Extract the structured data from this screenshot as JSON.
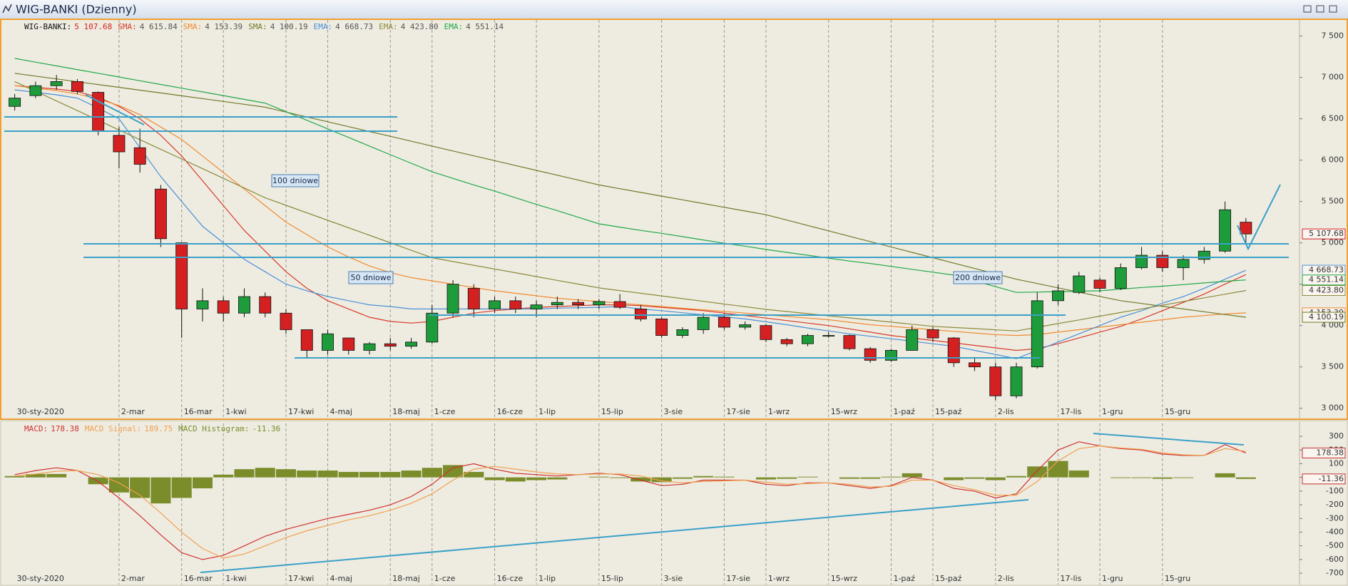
{
  "chart_data": [
    {
      "type": "candlestick",
      "title": "WIG-BANKI (Dzienny)",
      "name": "WIG-BANKI:",
      "last_label": "5 107.68",
      "up_color": "#1e9b3a",
      "down_color": "#d42020",
      "grid": true,
      "categories": [
        "30-sty-2020",
        null,
        null,
        null,
        null,
        "2-mar",
        null,
        null,
        "16-mar",
        null,
        "1-kwi",
        null,
        null,
        "17-kwi",
        null,
        "4-maj",
        null,
        null,
        "18-maj",
        null,
        "1-cze",
        null,
        null,
        "16-cze",
        null,
        "1-lip",
        null,
        null,
        "15-lip",
        null,
        null,
        "3-sie",
        null,
        null,
        "17-sie",
        null,
        "1-wrz",
        null,
        null,
        "15-wrz",
        null,
        null,
        "1-paź",
        null,
        "15-paź",
        null,
        null,
        "2-lis",
        null,
        null,
        "17-lis",
        null,
        "1-gru",
        null,
        null,
        "15-gru",
        null,
        null,
        null,
        null
      ],
      "open": [
        6650,
        6780,
        6900,
        6950,
        6820,
        6300,
        6150,
        5650,
        5000,
        4200,
        4300,
        4150,
        4350,
        4150,
        3950,
        3700,
        3850,
        3700,
        3780,
        3750,
        3800,
        4150,
        4450,
        4200,
        4300,
        4200,
        4250,
        4280,
        4250,
        4290,
        4200,
        4080,
        3880,
        3950,
        4100,
        3980,
        4000,
        3830,
        3780,
        3880,
        3880,
        3720,
        3580,
        3700,
        3950,
        3850,
        3550,
        3500,
        3150,
        3500,
        4300,
        4400,
        4550,
        4450,
        4700,
        4850,
        4700,
        4800,
        4900,
        5250
      ],
      "high": [
        6800,
        6950,
        7030,
        6980,
        6830,
        6400,
        6380,
        5700,
        5000,
        4450,
        4350,
        4450,
        4400,
        4200,
        3950,
        3950,
        3850,
        3800,
        3850,
        3850,
        4250,
        4550,
        4500,
        4350,
        4350,
        4300,
        4350,
        4320,
        4320,
        4380,
        4250,
        4100,
        3980,
        4150,
        4150,
        4050,
        4020,
        3850,
        3900,
        3920,
        3890,
        3740,
        3720,
        4000,
        3980,
        3860,
        3620,
        3550,
        3550,
        4400,
        4500,
        4650,
        4580,
        4750,
        4950,
        4900,
        4850,
        4950,
        5500,
        5300
      ],
      "low": [
        6600,
        6750,
        6850,
        6800,
        6300,
        5900,
        5850,
        4950,
        3850,
        4050,
        4050,
        4100,
        4100,
        3900,
        3600,
        3650,
        3650,
        3650,
        3700,
        3720,
        3780,
        4100,
        4100,
        4150,
        4150,
        4100,
        4200,
        4200,
        4200,
        4200,
        4050,
        3850,
        3850,
        3900,
        3950,
        3950,
        3800,
        3750,
        3750,
        3850,
        3700,
        3550,
        3560,
        3700,
        3800,
        3500,
        3450,
        3100,
        3120,
        3480,
        4250,
        4380,
        4400,
        4430,
        4680,
        4650,
        4550,
        4750,
        4880,
        5000
      ],
      "close": [
        6750,
        6900,
        6950,
        6830,
        6350,
        6100,
        5950,
        5050,
        4200,
        4300,
        4150,
        4350,
        4150,
        3950,
        3700,
        3900,
        3700,
        3780,
        3750,
        3800,
        4150,
        4500,
        4200,
        4300,
        4200,
        4250,
        4280,
        4250,
        4290,
        4220,
        4080,
        3880,
        3950,
        4100,
        3980,
        4010,
        3830,
        3780,
        3880,
        3880,
        3720,
        3580,
        3700,
        3950,
        3850,
        3550,
        3500,
        3150,
        3500,
        4300,
        4420,
        4600,
        4450,
        4700,
        4850,
        4700,
        4800,
        4900,
        5400,
        5107.68
      ],
      "series": [
        {
          "name": "SMA:",
          "color": "#d83a2a",
          "last_label": "4 615.84",
          "values": [
            6900,
            6880,
            6860,
            6830,
            6760,
            6650,
            6500,
            6300,
            6050,
            5750,
            5450,
            5150,
            4900,
            4650,
            4450,
            4300,
            4200,
            4100,
            4050,
            4030,
            4050,
            4100,
            4150,
            4180,
            4200,
            4220,
            4230,
            4240,
            4250,
            4250,
            4240,
            4220,
            4200,
            4180,
            4150,
            4120,
            4090,
            4060,
            4030,
            4000,
            3960,
            3920,
            3880,
            3850,
            3820,
            3790,
            3760,
            3730,
            3700,
            3720,
            3780,
            3850,
            3920,
            3990,
            4080,
            4180,
            4280,
            4380,
            4500,
            4615.84
          ]
        },
        {
          "name": "SMA:",
          "color": "#f08a30",
          "last_label": "4 153.39",
          "values": [
            6900,
            6870,
            6840,
            6800,
            6740,
            6660,
            6550,
            6400,
            6250,
            6050,
            5850,
            5650,
            5450,
            5250,
            5100,
            4950,
            4830,
            4720,
            4640,
            4580,
            4540,
            4500,
            4460,
            4420,
            4390,
            4360,
            4330,
            4310,
            4290,
            4270,
            4250,
            4230,
            4210,
            4190,
            4170,
            4150,
            4130,
            4110,
            4090,
            4070,
            4040,
            4010,
            3990,
            3970,
            3950,
            3930,
            3910,
            3890,
            3880,
            3890,
            3920,
            3950,
            3980,
            4010,
            4040,
            4070,
            4100,
            4120,
            4140,
            4153.39
          ]
        },
        {
          "name": "SMA:",
          "color": "#6f7a28",
          "last_label": "4 100.19",
          "values": [
            7050,
            7016,
            6982,
            6948,
            6914,
            6880,
            6846,
            6812,
            6778,
            6744,
            6710,
            6675,
            6640,
            6581,
            6522,
            6464,
            6405,
            6346,
            6288,
            6229,
            6170,
            6111,
            6052,
            5994,
            5935,
            5876,
            5818,
            5759,
            5700,
            5655,
            5610,
            5565,
            5520,
            5475,
            5430,
            5385,
            5340,
            5275,
            5210,
            5145,
            5080,
            5015,
            4950,
            4885,
            4820,
            4755,
            4690,
            4625,
            4560,
            4508,
            4456,
            4404,
            4352,
            4300,
            4267,
            4233,
            4200,
            4167,
            4133,
            4100.19
          ]
        },
        {
          "name": "EMA:",
          "color": "#4a8fd8",
          "last_label": "4 668.73",
          "values": [
            6850,
            6820,
            6790,
            6750,
            6630,
            6500,
            6150,
            5800,
            5500,
            5200,
            5000,
            4800,
            4650,
            4500,
            4420,
            4350,
            4300,
            4250,
            4230,
            4200,
            4200,
            4200,
            4200,
            4200,
            4200,
            4200,
            4210,
            4215,
            4220,
            4230,
            4200,
            4180,
            4155,
            4130,
            4105,
            4080,
            4045,
            4010,
            3970,
            3935,
            3900,
            3870,
            3840,
            3810,
            3780,
            3750,
            3700,
            3650,
            3600,
            3700,
            3800,
            3900,
            4000,
            4100,
            4180,
            4270,
            4350,
            4450,
            4560,
            4668.73
          ]
        },
        {
          "name": "EMA:",
          "color": "#8c8a3a",
          "last_label": "4 423.80",
          "values": [
            6950,
            6833,
            6716,
            6599,
            6482,
            6365,
            6248,
            6131,
            6014,
            5897,
            5780,
            5663,
            5545,
            5454,
            5363,
            5273,
            5182,
            5092,
            5001,
            4910,
            4820,
            4774,
            4729,
            4683,
            4638,
            4592,
            4546,
            4501,
            4455,
            4423,
            4390,
            4358,
            4325,
            4293,
            4260,
            4228,
            4195,
            4169,
            4144,
            4118,
            4093,
            4067,
            4041,
            4016,
            3990,
            3976,
            3963,
            3949,
            3935,
            3979,
            4024,
            4068,
            4113,
            4157,
            4201,
            4246,
            4290,
            4335,
            4379,
            4423.8
          ]
        },
        {
          "name": "EMA:",
          "color": "#20a84a",
          "last_label": "4 551.14",
          "values": [
            7230,
            7185,
            7140,
            7095,
            7050,
            7005,
            6960,
            6915,
            6870,
            6825,
            6780,
            6735,
            6690,
            6586,
            6482,
            6378,
            6274,
            6170,
            6066,
            5962,
            5860,
            5780,
            5700,
            5625,
            5545,
            5465,
            5390,
            5310,
            5230,
            5190,
            5150,
            5115,
            5075,
            5035,
            4995,
            4960,
            4920,
            4885,
            4850,
            4815,
            4780,
            4750,
            4715,
            4680,
            4645,
            4610,
            4540,
            4470,
            4400,
            4405,
            4410,
            4415,
            4420,
            4440,
            4460,
            4475,
            4495,
            4515,
            4535,
            4551.14
          ]
        }
      ],
      "ylim": [
        2885,
        7695
      ],
      "yticks": [
        {
          "value": 7500,
          "label": "7 500"
        },
        {
          "value": 7000,
          "label": "7 000"
        },
        {
          "value": 6500,
          "label": "6 500"
        },
        {
          "value": 6000,
          "label": "6 000"
        },
        {
          "value": 5500,
          "label": "5 500"
        },
        {
          "value": 5000,
          "label": "5 000"
        },
        {
          "value": 4500,
          "label": "4 500"
        },
        {
          "value": 4000,
          "label": "4 000"
        },
        {
          "value": 3500,
          "label": "3 500"
        },
        {
          "value": 3000,
          "label": "3 000"
        }
      ],
      "annotations": [
        "100 dniowe",
        "50 dniowe",
        "200 dniowe"
      ]
    },
    {
      "type": "macd",
      "grid": true,
      "categories": [
        "30-sty-2020",
        null,
        null,
        null,
        null,
        "2-mar",
        null,
        null,
        "16-mar",
        null,
        "1-kwi",
        null,
        null,
        "17-kwi",
        null,
        "4-maj",
        null,
        null,
        "18-maj",
        null,
        "1-cze",
        null,
        null,
        "16-cze",
        null,
        "1-lip",
        null,
        null,
        "15-lip",
        null,
        null,
        "3-sie",
        null,
        null,
        "17-sie",
        null,
        "1-wrz",
        null,
        null,
        "15-wrz",
        null,
        null,
        "1-paź",
        null,
        "15-paź",
        null,
        null,
        "2-lis",
        null,
        null,
        "17-lis",
        null,
        "1-gru",
        null,
        null,
        "15-gru",
        null,
        null,
        null,
        null
      ],
      "series": [
        {
          "name": "MACD Histogram:",
          "kind": "bar",
          "color": "#7b8c2a",
          "last_label": "-11.36",
          "axis_box": true,
          "values": [
            10,
            25,
            25,
            0,
            -50,
            -110,
            -150,
            -190,
            -150,
            -80,
            20,
            60,
            70,
            60,
            50,
            50,
            40,
            40,
            40,
            50,
            70,
            90,
            40,
            -20,
            -30,
            -20,
            -15,
            0,
            5,
            -5,
            -30,
            -35,
            -10,
            10,
            5,
            0,
            -15,
            -10,
            5,
            0,
            -10,
            -10,
            5,
            30,
            0,
            -20,
            -10,
            -20,
            10,
            80,
            120,
            50,
            0,
            -5,
            -5,
            -10,
            -5,
            0,
            30,
            -11.36
          ]
        },
        {
          "name": "MACD:",
          "kind": "line",
          "color": "#d03030",
          "last_label": "178.38",
          "axis_box": true,
          "values": [
            20,
            50,
            70,
            50,
            -30,
            -150,
            -280,
            -420,
            -550,
            -600,
            -570,
            -500,
            -430,
            -380,
            -340,
            -300,
            -270,
            -240,
            -200,
            -140,
            -50,
            70,
            100,
            60,
            30,
            20,
            10,
            20,
            30,
            20,
            -20,
            -60,
            -50,
            -20,
            -20,
            -20,
            -50,
            -60,
            -40,
            -40,
            -60,
            -80,
            -60,
            0,
            -20,
            -80,
            -100,
            -150,
            -120,
            50,
            200,
            260,
            230,
            210,
            200,
            170,
            160,
            160,
            240,
            178.38
          ]
        },
        {
          "name": "MACD Signal:",
          "kind": "line",
          "color": "#f0a050",
          "last_label": "189.75",
          "axis_box": false,
          "values": [
            10,
            25,
            45,
            50,
            20,
            -40,
            -130,
            -260,
            -400,
            -520,
            -590,
            -560,
            -500,
            -440,
            -390,
            -350,
            -310,
            -280,
            -240,
            -190,
            -120,
            -20,
            60,
            80,
            60,
            40,
            25,
            20,
            25,
            25,
            10,
            -25,
            -40,
            -30,
            -25,
            -20,
            -35,
            -50,
            -45,
            -40,
            -50,
            -70,
            -65,
            -20,
            -20,
            -60,
            -90,
            -130,
            -130,
            -30,
            120,
            210,
            230,
            215,
            205,
            180,
            165,
            160,
            210,
            189.75
          ]
        }
      ],
      "ylim": [
        -783,
        394
      ],
      "yticks": [
        300,
        200,
        100,
        0,
        -100,
        -200,
        -300,
        -400,
        -500,
        -600,
        -700
      ]
    }
  ]
}
